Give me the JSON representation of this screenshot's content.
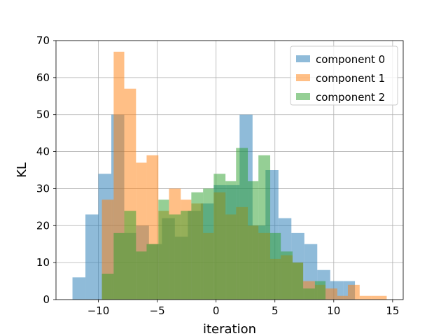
{
  "chart_data": {
    "type": "bar",
    "subtype": "overlapping-histogram",
    "xlabel": "iteration",
    "ylabel": "KL",
    "xlim": [
      -13.6,
      15.9
    ],
    "ylim": [
      0,
      70
    ],
    "xticks": [
      -10,
      -5,
      0,
      5,
      10,
      15
    ],
    "yticks": [
      0,
      10,
      20,
      30,
      40,
      50,
      60,
      70
    ],
    "grid": true,
    "legend_position": "top-right",
    "series": [
      {
        "name": "component 0",
        "color": "#1f77b4",
        "opacity": 0.5,
        "bins": [
          {
            "x0": -12.2,
            "x1": -11.1,
            "count": 6
          },
          {
            "x0": -11.1,
            "x1": -10.0,
            "count": 23
          },
          {
            "x0": -10.0,
            "x1": -8.9,
            "count": 34
          },
          {
            "x0": -8.9,
            "x1": -7.8,
            "count": 50
          },
          {
            "x0": -7.8,
            "x1": -6.8,
            "count": 18
          },
          {
            "x0": -6.8,
            "x1": -5.7,
            "count": 20
          },
          {
            "x0": -5.7,
            "x1": -4.6,
            "count": 15
          },
          {
            "x0": -4.6,
            "x1": -3.5,
            "count": 22
          },
          {
            "x0": -3.5,
            "x1": -2.4,
            "count": 17
          },
          {
            "x0": -2.4,
            "x1": -1.3,
            "count": 24
          },
          {
            "x0": -1.3,
            "x1": -0.2,
            "count": 26
          },
          {
            "x0": -0.2,
            "x1": 0.9,
            "count": 31
          },
          {
            "x0": 0.9,
            "x1": 2.0,
            "count": 31
          },
          {
            "x0": 2.0,
            "x1": 3.1,
            "count": 50
          },
          {
            "x0": 3.1,
            "x1": 4.2,
            "count": 20
          },
          {
            "x0": 4.2,
            "x1": 5.3,
            "count": 35
          },
          {
            "x0": 5.3,
            "x1": 6.4,
            "count": 22
          },
          {
            "x0": 6.4,
            "x1": 7.5,
            "count": 18
          },
          {
            "x0": 7.5,
            "x1": 8.6,
            "count": 15
          },
          {
            "x0": 8.6,
            "x1": 9.7,
            "count": 8
          },
          {
            "x0": 9.7,
            "x1": 10.8,
            "count": 5
          },
          {
            "x0": 10.8,
            "x1": 11.8,
            "count": 5
          }
        ]
      },
      {
        "name": "component 1",
        "color": "#ff7f0e",
        "opacity": 0.5,
        "bins": [
          {
            "x0": -9.7,
            "x1": -8.7,
            "count": 27
          },
          {
            "x0": -8.7,
            "x1": -7.8,
            "count": 67
          },
          {
            "x0": -7.8,
            "x1": -6.8,
            "count": 57
          },
          {
            "x0": -6.8,
            "x1": -5.9,
            "count": 37
          },
          {
            "x0": -5.9,
            "x1": -4.9,
            "count": 39
          },
          {
            "x0": -4.9,
            "x1": -4.0,
            "count": 24
          },
          {
            "x0": -4.0,
            "x1": -3.0,
            "count": 30
          },
          {
            "x0": -3.0,
            "x1": -2.1,
            "count": 27
          },
          {
            "x0": -2.1,
            "x1": -1.1,
            "count": 26
          },
          {
            "x0": -1.1,
            "x1": -0.2,
            "count": 18
          },
          {
            "x0": -0.2,
            "x1": 0.8,
            "count": 29
          },
          {
            "x0": 0.8,
            "x1": 1.7,
            "count": 23
          },
          {
            "x0": 1.7,
            "x1": 2.7,
            "count": 25
          },
          {
            "x0": 2.7,
            "x1": 3.6,
            "count": 20
          },
          {
            "x0": 3.6,
            "x1": 4.6,
            "count": 18
          },
          {
            "x0": 4.6,
            "x1": 5.5,
            "count": 11
          },
          {
            "x0": 5.5,
            "x1": 6.5,
            "count": 12
          },
          {
            "x0": 6.5,
            "x1": 7.4,
            "count": 10
          },
          {
            "x0": 7.4,
            "x1": 8.4,
            "count": 5
          },
          {
            "x0": 8.4,
            "x1": 9.3,
            "count": 4
          },
          {
            "x0": 9.3,
            "x1": 10.3,
            "count": 3
          },
          {
            "x0": 10.3,
            "x1": 11.2,
            "count": 1
          },
          {
            "x0": 11.2,
            "x1": 12.2,
            "count": 4
          },
          {
            "x0": 12.2,
            "x1": 13.2,
            "count": 1
          },
          {
            "x0": 13.2,
            "x1": 14.5,
            "count": 1
          }
        ]
      },
      {
        "name": "component 2",
        "color": "#2ca02c",
        "opacity": 0.5,
        "bins": [
          {
            "x0": -9.7,
            "x1": -8.7,
            "count": 7
          },
          {
            "x0": -8.7,
            "x1": -7.8,
            "count": 18
          },
          {
            "x0": -7.8,
            "x1": -6.8,
            "count": 24
          },
          {
            "x0": -6.8,
            "x1": -5.9,
            "count": 13
          },
          {
            "x0": -5.9,
            "x1": -4.9,
            "count": 15
          },
          {
            "x0": -4.9,
            "x1": -4.0,
            "count": 27
          },
          {
            "x0": -4.0,
            "x1": -3.0,
            "count": 23
          },
          {
            "x0": -3.0,
            "x1": -2.1,
            "count": 24
          },
          {
            "x0": -2.1,
            "x1": -1.1,
            "count": 29
          },
          {
            "x0": -1.1,
            "x1": -0.2,
            "count": 30
          },
          {
            "x0": -0.2,
            "x1": 0.8,
            "count": 34
          },
          {
            "x0": 0.8,
            "x1": 1.7,
            "count": 32
          },
          {
            "x0": 1.7,
            "x1": 2.7,
            "count": 41
          },
          {
            "x0": 2.7,
            "x1": 3.6,
            "count": 32
          },
          {
            "x0": 3.6,
            "x1": 4.6,
            "count": 39
          },
          {
            "x0": 4.6,
            "x1": 5.5,
            "count": 18
          },
          {
            "x0": 5.5,
            "x1": 6.5,
            "count": 13
          },
          {
            "x0": 6.5,
            "x1": 7.4,
            "count": 10
          },
          {
            "x0": 7.4,
            "x1": 8.4,
            "count": 3
          },
          {
            "x0": 8.4,
            "x1": 9.3,
            "count": 5
          }
        ]
      }
    ]
  }
}
